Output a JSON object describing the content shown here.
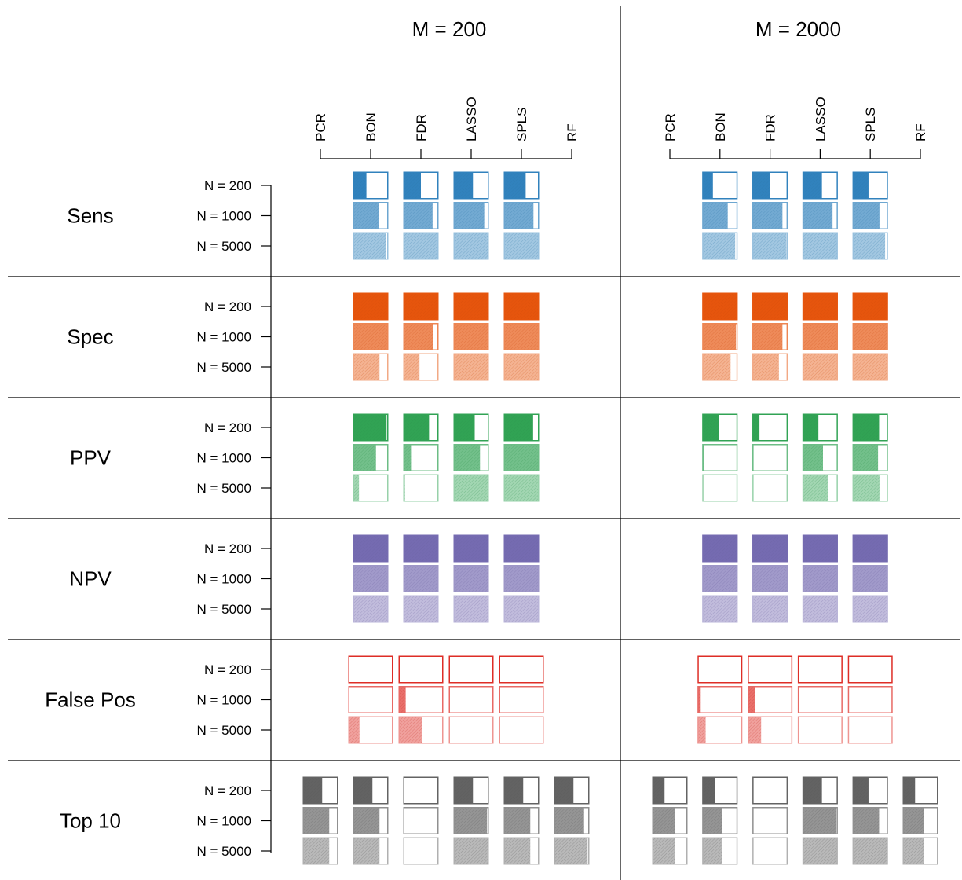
{
  "chart_data": {
    "type": "bar",
    "encoding": "each box is a proportion between 0 and 1; the hatched fill covers that share of the box",
    "panels": [
      "M = 200",
      "M = 2000"
    ],
    "methods": [
      "PCR",
      "BON",
      "FDR",
      "LASSO",
      "SPLS",
      "RF"
    ],
    "sample_sizes": [
      "N = 200",
      "N = 1000",
      "N = 5000"
    ],
    "metrics": [
      {
        "name": "Sens",
        "color": "#3182bd",
        "values": {
          "M = 200": {
            "PCR": [
              null,
              null,
              null
            ],
            "BON": [
              0.38,
              0.73,
              0.93
            ],
            "FDR": [
              0.5,
              0.83,
              0.96
            ],
            "LASSO": [
              0.55,
              0.87,
              0.98
            ],
            "SPLS": [
              0.62,
              0.84,
              0.98
            ],
            "RF": [
              null,
              null,
              null
            ]
          },
          "M = 2000": {
            "PCR": [
              null,
              null,
              null
            ],
            "BON": [
              0.3,
              0.72,
              0.93
            ],
            "FDR": [
              0.5,
              0.85,
              0.96
            ],
            "LASSO": [
              0.55,
              0.85,
              0.97
            ],
            "SPLS": [
              0.45,
              0.76,
              0.92
            ],
            "RF": [
              null,
              null,
              null
            ]
          }
        }
      },
      {
        "name": "Spec",
        "color": "#e6550d",
        "values": {
          "M = 200": {
            "PCR": [
              null,
              null,
              null
            ],
            "BON": [
              1.0,
              1.0,
              0.75
            ],
            "FDR": [
              1.0,
              0.85,
              0.46
            ],
            "LASSO": [
              1.0,
              1.0,
              1.0
            ],
            "SPLS": [
              1.0,
              1.0,
              1.0
            ],
            "RF": [
              null,
              null,
              null
            ]
          },
          "M = 2000": {
            "PCR": [
              null,
              null,
              null
            ],
            "BON": [
              1.0,
              0.95,
              0.8
            ],
            "FDR": [
              1.0,
              0.85,
              0.75
            ],
            "LASSO": [
              1.0,
              1.0,
              1.0
            ],
            "SPLS": [
              1.0,
              1.0,
              1.0
            ],
            "RF": [
              null,
              null,
              null
            ]
          }
        }
      },
      {
        "name": "PPV",
        "color": "#31a354",
        "values": {
          "M = 200": {
            "PCR": [
              null,
              null,
              null
            ],
            "BON": [
              0.95,
              0.65,
              0.17
            ],
            "FDR": [
              0.73,
              0.22,
              0.05
            ],
            "LASSO": [
              0.6,
              0.75,
              1.0
            ],
            "SPLS": [
              0.83,
              0.97,
              1.0
            ],
            "RF": [
              null,
              null,
              null
            ]
          },
          "M = 2000": {
            "PCR": [
              null,
              null,
              null
            ],
            "BON": [
              0.48,
              0.05,
              0.0
            ],
            "FDR": [
              0.2,
              0.03,
              0.0
            ],
            "LASSO": [
              0.45,
              0.58,
              0.72
            ],
            "SPLS": [
              0.75,
              0.72,
              0.76
            ],
            "RF": [
              null,
              null,
              null
            ]
          }
        }
      },
      {
        "name": "NPV",
        "color": "#756bb1",
        "values": {
          "M = 200": {
            "PCR": [
              null,
              null,
              null
            ],
            "BON": [
              1.0,
              1.0,
              1.0
            ],
            "FDR": [
              1.0,
              1.0,
              1.0
            ],
            "LASSO": [
              1.0,
              1.0,
              1.0
            ],
            "SPLS": [
              1.0,
              1.0,
              1.0
            ],
            "RF": [
              null,
              null,
              null
            ]
          },
          "M = 2000": {
            "PCR": [
              null,
              null,
              null
            ],
            "BON": [
              1.0,
              1.0,
              1.0
            ],
            "FDR": [
              1.0,
              1.0,
              1.0
            ],
            "LASSO": [
              1.0,
              1.0,
              1.0
            ],
            "SPLS": [
              1.0,
              1.0,
              1.0
            ],
            "RF": [
              null,
              null,
              null
            ]
          }
        }
      },
      {
        "name": "False Pos",
        "color": "#de2d26",
        "values": {
          "M = 200": {
            "PCR": [
              null,
              null,
              null
            ],
            "BON": [
              0.0,
              0.0,
              0.25
            ],
            "FDR": [
              0.0,
              0.16,
              0.52
            ],
            "LASSO": [
              0.0,
              0.0,
              0.0
            ],
            "SPLS": [
              0.0,
              0.0,
              0.0
            ],
            "RF": [
              null,
              null,
              null
            ]
          },
          "M = 2000": {
            "PCR": [
              null,
              null,
              null
            ],
            "BON": [
              0.0,
              0.07,
              0.18
            ],
            "FDR": [
              0.0,
              0.16,
              0.3
            ],
            "LASSO": [
              0.0,
              0.0,
              0.0
            ],
            "SPLS": [
              0.0,
              0.0,
              0.0
            ],
            "RF": [
              null,
              null,
              null
            ]
          }
        }
      },
      {
        "name": "Top 10",
        "color": "#636363",
        "values": {
          "M = 200": {
            "PCR": [
              0.55,
              0.75,
              0.75
            ],
            "BON": [
              0.55,
              0.75,
              0.75
            ],
            "FDR": [
              0.0,
              0.0,
              0.0
            ],
            "LASSO": [
              0.55,
              0.95,
              0.98
            ],
            "SPLS": [
              0.55,
              0.75,
              0.75
            ],
            "RF": [
              0.55,
              0.85,
              0.95
            ]
          },
          "M = 2000": {
            "PCR": [
              0.35,
              0.65,
              0.65
            ],
            "BON": [
              0.35,
              0.55,
              0.55
            ],
            "FDR": [
              0.0,
              0.0,
              0.0
            ],
            "LASSO": [
              0.55,
              0.95,
              0.98
            ],
            "SPLS": [
              0.45,
              0.75,
              0.98
            ],
            "RF": [
              0.35,
              0.6,
              0.6
            ]
          }
        }
      }
    ]
  }
}
